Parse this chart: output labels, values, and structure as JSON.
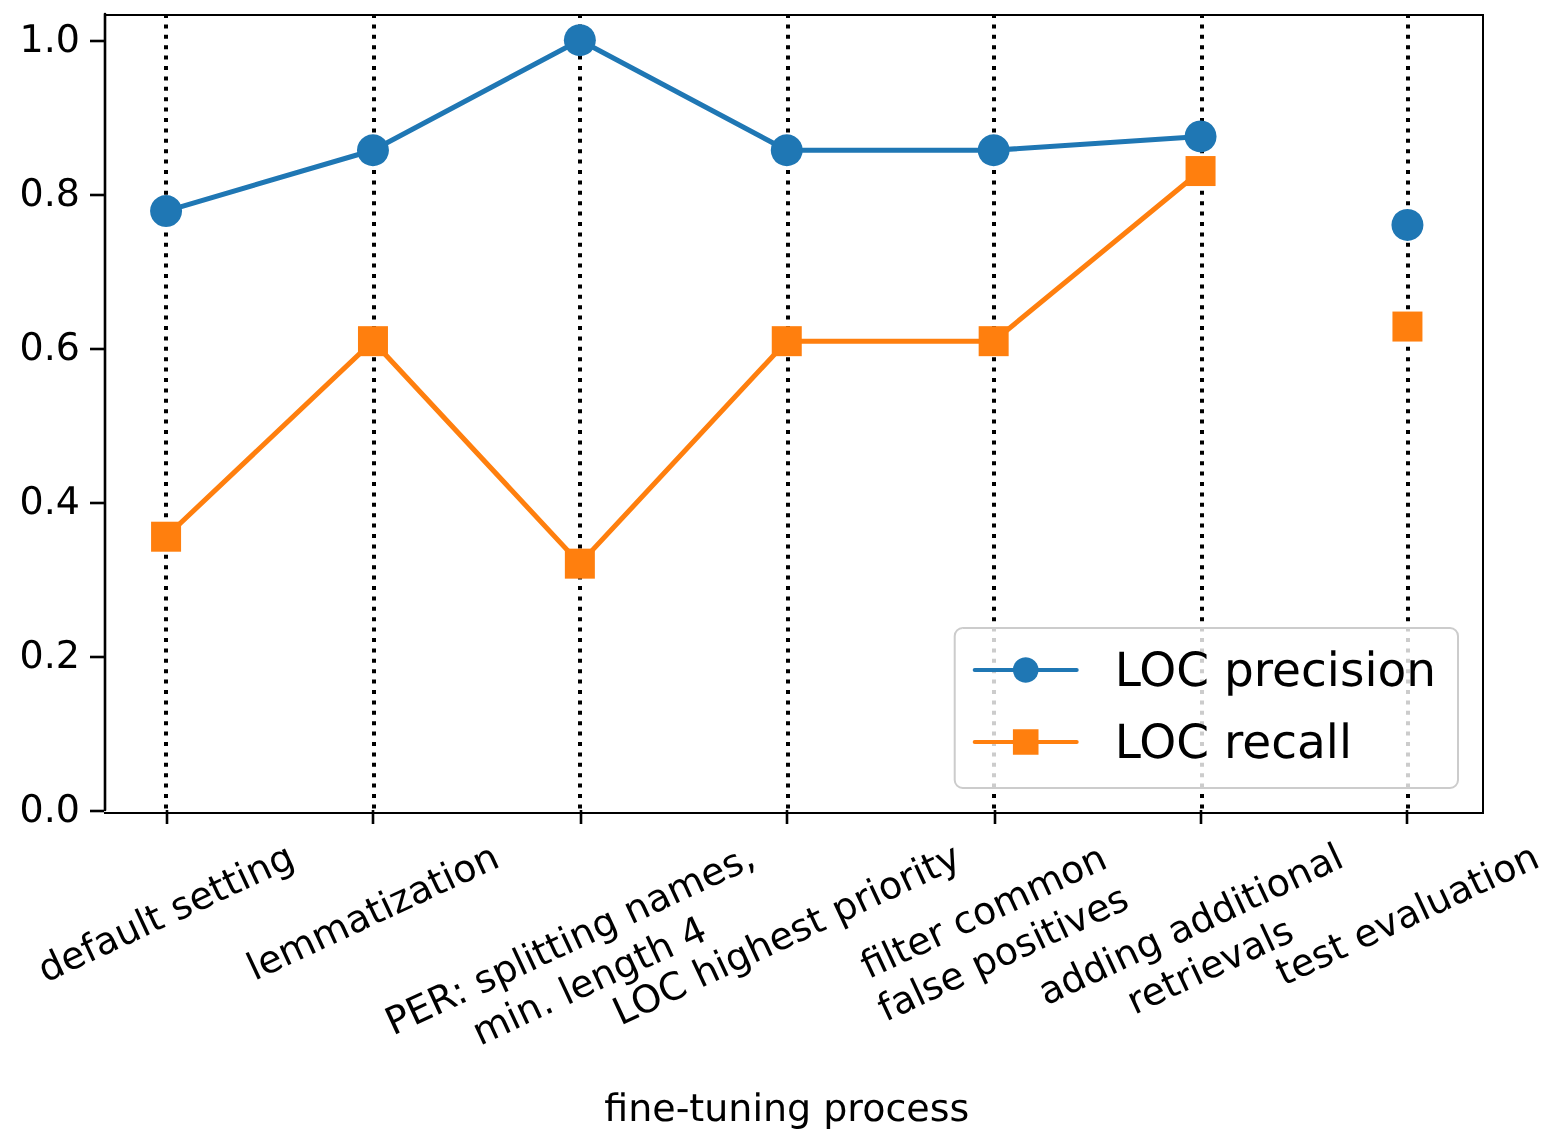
{
  "chart_data": {
    "type": "line",
    "xlabel": "fine-tuning process",
    "categories": [
      "default setting",
      "lemmatization",
      "PER: splitting names,\nmin. length 4",
      "LOC highest priority",
      "filter common\nfalse positives",
      "adding additional\nretrievals",
      "test evaluation"
    ],
    "series": [
      {
        "name": "LOC precision",
        "color": "#1f77b4",
        "marker": "circle",
        "values": [
          0.778,
          0.857,
          1.0,
          0.857,
          0.857,
          0.875,
          null
        ]
      },
      {
        "name": "LOC recall",
        "color": "#ff7f0e",
        "marker": "square",
        "values": [
          0.355,
          0.609,
          0.32,
          0.609,
          0.609,
          0.83,
          null
        ]
      },
      {
        "type": "scatter",
        "color": "#1f77b4",
        "marker": "circle",
        "x": [
          "test evaluation"
        ],
        "values": [
          0.76
        ]
      },
      {
        "type": "scatter",
        "color": "#ff7f0e",
        "marker": "square",
        "x": [
          "test evaluation"
        ],
        "values": [
          0.628
        ]
      }
    ],
    "ylim": [
      0,
      1.034
    ],
    "yticks": [
      {
        "value": 0,
        "label": "0.0"
      },
      {
        "value": 0.2,
        "label": "0.2"
      },
      {
        "value": 0.4,
        "label": "0.4"
      },
      {
        "value": 0.6,
        "label": "0.6"
      },
      {
        "value": 0.8,
        "label": "0.8"
      },
      {
        "value": 1,
        "label": "1.0"
      }
    ],
    "grid": "x",
    "legend": "bottom right"
  }
}
